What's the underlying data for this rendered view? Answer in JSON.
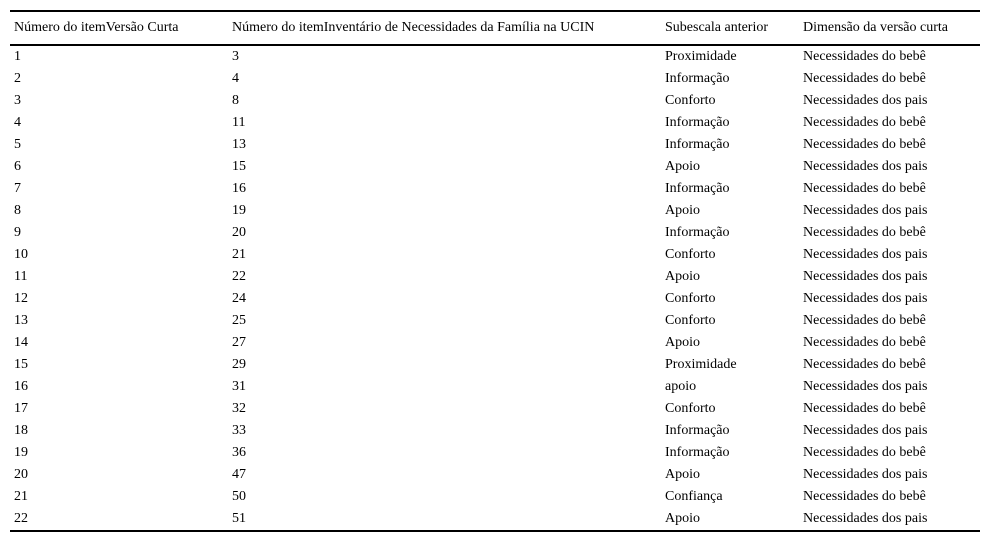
{
  "table": {
    "headers": [
      "Número do itemVersão Curta",
      "Número do itemInventário de Necessidades da Família na UCIN",
      "Subescala anterior",
      "Dimensão da versão curta"
    ],
    "rows": [
      {
        "item_short": "1",
        "item_full": "3",
        "subscale": "Proximidade",
        "dimension": "Necessidades do bebê"
      },
      {
        "item_short": "2",
        "item_full": "4",
        "subscale": "Informação",
        "dimension": "Necessidades do bebê"
      },
      {
        "item_short": "3",
        "item_full": "8",
        "subscale": "Conforto",
        "dimension": "Necessidades dos pais"
      },
      {
        "item_short": "4",
        "item_full": "11",
        "subscale": "Informação",
        "dimension": "Necessidades do bebê"
      },
      {
        "item_short": "5",
        "item_full": "13",
        "subscale": "Informação",
        "dimension": "Necessidades do bebê"
      },
      {
        "item_short": "6",
        "item_full": "15",
        "subscale": "Apoio",
        "dimension": "Necessidades dos pais"
      },
      {
        "item_short": "7",
        "item_full": "16",
        "subscale": "Informação",
        "dimension": "Necessidades do bebê"
      },
      {
        "item_short": "8",
        "item_full": "19",
        "subscale": "Apoio",
        "dimension": "Necessidades dos pais"
      },
      {
        "item_short": "9",
        "item_full": "20",
        "subscale": "Informação",
        "dimension": "Necessidades do bebê"
      },
      {
        "item_short": "10",
        "item_full": "21",
        "subscale": "Conforto",
        "dimension": "Necessidades dos pais"
      },
      {
        "item_short": "11",
        "item_full": "22",
        "subscale": "Apoio",
        "dimension": "Necessidades dos pais"
      },
      {
        "item_short": "12",
        "item_full": "24",
        "subscale": "Conforto",
        "dimension": "Necessidades dos pais"
      },
      {
        "item_short": "13",
        "item_full": "25",
        "subscale": "Conforto",
        "dimension": "Necessidades do bebê"
      },
      {
        "item_short": "14",
        "item_full": "27",
        "subscale": "Apoio",
        "dimension": "Necessidades do bebê"
      },
      {
        "item_short": "15",
        "item_full": "29",
        "subscale": "Proximidade",
        "dimension": "Necessidades do bebê"
      },
      {
        "item_short": "16",
        "item_full": "31",
        "subscale": "apoio",
        "dimension": "Necessidades dos pais"
      },
      {
        "item_short": "17",
        "item_full": "32",
        "subscale": "Conforto",
        "dimension": "Necessidades do bebê"
      },
      {
        "item_short": "18",
        "item_full": "33",
        "subscale": "Informação",
        "dimension": "Necessidades dos pais"
      },
      {
        "item_short": "19",
        "item_full": "36",
        "subscale": "Informação",
        "dimension": "Necessidades do bebê"
      },
      {
        "item_short": "20",
        "item_full": "47",
        "subscale": "Apoio",
        "dimension": "Necessidades dos pais"
      },
      {
        "item_short": "21",
        "item_full": "50",
        "subscale": "Confiança",
        "dimension": "Necessidades do bebê"
      },
      {
        "item_short": "22",
        "item_full": "51",
        "subscale": "Apoio",
        "dimension": "Necessidades dos pais"
      }
    ]
  }
}
